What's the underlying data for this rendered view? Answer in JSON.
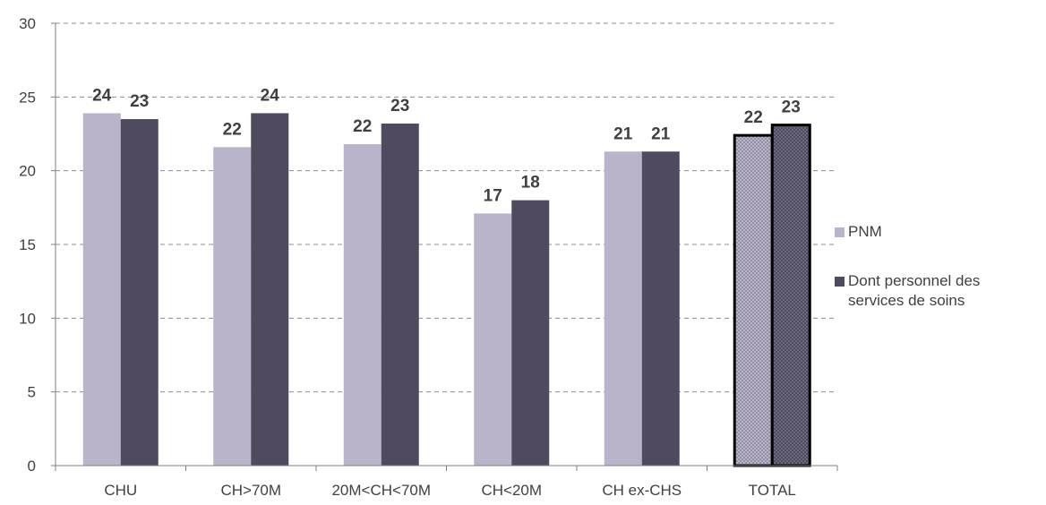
{
  "chart_data": {
    "type": "bar",
    "categories": [
      "CHU",
      "CH>70M",
      "20M<CH<70M",
      "CH<20M",
      "CH ex-CHS",
      "TOTAL"
    ],
    "series": [
      {
        "name": "PNM",
        "values": [
          23.9,
          21.6,
          21.8,
          17.1,
          21.3,
          22.4
        ],
        "labels": [
          "24",
          "22",
          "22",
          "17",
          "21",
          "22"
        ],
        "color": "#b9b4c9"
      },
      {
        "name": "Dont personnel des services de soins",
        "values": [
          23.5,
          23.9,
          23.2,
          18.0,
          21.3,
          23.1
        ],
        "labels": [
          "23",
          "24",
          "23",
          "18",
          "21",
          "23"
        ],
        "color": "#4f4a5e"
      }
    ],
    "ylim": [
      0,
      30
    ],
    "yticks": [
      0,
      5,
      10,
      15,
      20,
      25,
      30
    ],
    "grid": true,
    "legend_position": "right",
    "highlighted_category": "TOTAL",
    "label_color": "#404040",
    "axis_color": "#7f7f7f"
  },
  "legend": {
    "items": [
      {
        "label": "PNM",
        "color": "#b9b4c9"
      },
      {
        "label": "Dont personnel des services de soins",
        "color": "#4f4a5e"
      }
    ]
  }
}
